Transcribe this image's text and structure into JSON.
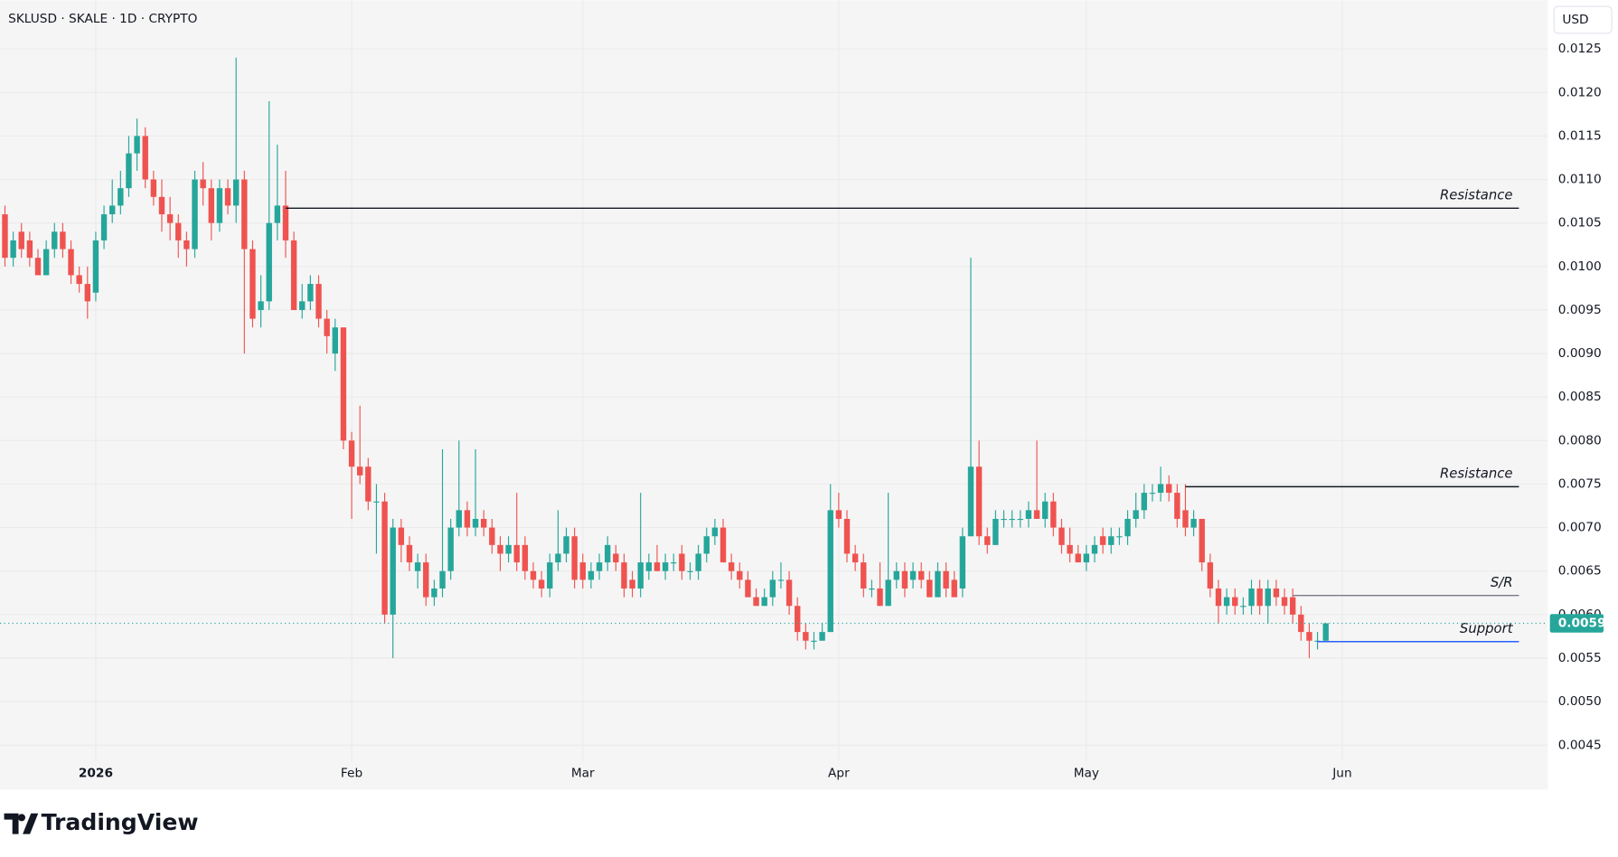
{
  "chart_data": {
    "type": "candlestick",
    "title": "SKLUSD · SKALE · 1D · CRYPTO",
    "currency": "USD",
    "brand": "TradingView",
    "up_color": "#26a69a",
    "down_color": "#ef5350",
    "xlim": [
      -0.6,
      186.9
    ],
    "xticks": [
      {
        "value": 11,
        "label": "2026"
      },
      {
        "value": 42,
        "label": "Feb"
      },
      {
        "value": 70,
        "label": "Mar"
      },
      {
        "value": 101,
        "label": "Apr"
      },
      {
        "value": 131,
        "label": "May"
      },
      {
        "value": 162,
        "label": "Jun"
      }
    ],
    "ylim": [
      0.00432,
      0.01306
    ],
    "yticks": [
      {
        "value": 0.0045,
        "label": "0.0045"
      },
      {
        "value": 0.005,
        "label": "0.0050"
      },
      0.0055,
      {
        "value": 0.006,
        "label": "0.0060"
      },
      0.0065,
      {
        "value": 0.007,
        "label": "0.0070"
      },
      0.0075,
      {
        "value": 0.008,
        "label": "0.0080"
      },
      0.0085,
      {
        "value": 0.009,
        "label": "0.0090"
      },
      0.0095,
      {
        "value": 0.01,
        "label": "0.0100"
      },
      0.0105,
      {
        "value": 0.011,
        "label": "0.0110"
      },
      0.0115,
      {
        "value": 0.012,
        "label": "0.0120"
      },
      0.0125
    ],
    "grid": true,
    "open": [
      0.0106,
      0.0101,
      0.0104,
      0.0103,
      0.0101,
      0.0099,
      0.0102,
      0.0104,
      0.0102,
      0.0099,
      0.0098,
      0.0097,
      0.0103,
      0.0106,
      0.0107,
      0.0109,
      0.0113,
      0.0115,
      0.011,
      0.0108,
      0.0106,
      0.0105,
      0.0103,
      0.0102,
      0.011,
      0.0109,
      0.0105,
      0.0109,
      0.0107,
      0.011,
      0.0102,
      0.0095,
      0.0096,
      0.0105,
      0.0107,
      0.0103,
      0.0095,
      0.0096,
      0.0098,
      0.0094,
      0.009,
      0.0093,
      0.008,
      0.0077,
      0.0077,
      0.0073,
      0.0073,
      0.006,
      0.007,
      0.0068,
      0.0065,
      0.0066,
      0.0062,
      0.0063,
      0.0065,
      0.007,
      0.0072,
      0.007,
      0.0071,
      0.007,
      0.0068,
      0.0067,
      0.0068,
      0.0068,
      0.0065,
      0.0064,
      0.0063,
      0.0066,
      0.0067,
      0.0069,
      0.0066,
      0.0064,
      0.0065,
      0.0066,
      0.0067,
      0.0066,
      0.0064,
      0.0063,
      0.0065,
      0.0066,
      0.0065,
      0.0066,
      0.0067,
      0.0065,
      0.0065,
      0.0067,
      0.0069,
      0.007,
      0.0066,
      0.0065,
      0.0064,
      0.0062,
      0.0061,
      0.0062,
      0.0064,
      0.0064,
      0.0061,
      0.0058,
      0.0057,
      0.0057,
      0.0058,
      0.0072,
      0.0071,
      0.0067,
      0.0066,
      0.0063,
      0.0063,
      0.0061,
      0.0064,
      0.0065,
      0.0064,
      0.0065,
      0.0064,
      0.0062,
      0.0065,
      0.0064,
      0.0063,
      0.0069,
      0.0077,
      0.0069,
      0.0068,
      0.0071,
      0.0071,
      0.0071,
      0.0071,
      0.0072,
      0.0071,
      0.0073,
      0.007,
      0.0068,
      0.0067,
      0.0066,
      0.0067,
      0.0069,
      0.0068,
      0.0069,
      0.0069,
      0.0071,
      0.0072,
      0.0074,
      0.0074,
      0.0075,
      0.0074,
      0.0072,
      0.007,
      0.0071,
      0.0066,
      0.0063,
      0.0061,
      0.0062,
      0.0061,
      0.0061,
      0.0063,
      0.0061,
      0.0063,
      0.0062,
      0.0062,
      0.006,
      0.0058,
      0.0057,
      0.0057
    ],
    "high": [
      0.0107,
      0.0104,
      0.0105,
      0.0104,
      0.0102,
      0.0103,
      0.0105,
      0.0105,
      0.0103,
      0.01,
      0.01,
      0.0104,
      0.0107,
      0.011,
      0.0111,
      0.0115,
      0.0117,
      0.0116,
      0.0111,
      0.011,
      0.0108,
      0.0106,
      0.0104,
      0.0111,
      0.0112,
      0.011,
      0.011,
      0.011,
      0.0124,
      0.0111,
      0.0103,
      0.0099,
      0.0119,
      0.0114,
      0.0111,
      0.0104,
      0.0098,
      0.0099,
      0.0099,
      0.0095,
      0.0094,
      0.0093,
      0.0081,
      0.0084,
      0.0078,
      0.0075,
      0.0074,
      0.0071,
      0.0071,
      0.0069,
      0.0067,
      0.0067,
      0.0064,
      0.0079,
      0.0071,
      0.008,
      0.0073,
      0.0079,
      0.0072,
      0.0071,
      0.0069,
      0.0069,
      0.0074,
      0.0069,
      0.0066,
      0.0065,
      0.0067,
      0.0072,
      0.007,
      0.007,
      0.0067,
      0.0066,
      0.0067,
      0.0069,
      0.0068,
      0.0067,
      0.0065,
      0.0074,
      0.0067,
      0.0068,
      0.0067,
      0.0067,
      0.0068,
      0.0066,
      0.0068,
      0.007,
      0.0071,
      0.0071,
      0.0067,
      0.0066,
      0.0065,
      0.0063,
      0.0063,
      0.0065,
      0.0066,
      0.0065,
      0.0062,
      0.0059,
      0.0058,
      0.0059,
      0.0075,
      0.0074,
      0.0072,
      0.0068,
      0.0067,
      0.0064,
      0.0066,
      0.0074,
      0.0066,
      0.0066,
      0.0066,
      0.0066,
      0.0065,
      0.0066,
      0.0066,
      0.0065,
      0.007,
      0.0101,
      0.008,
      0.007,
      0.0072,
      0.0072,
      0.0072,
      0.0072,
      0.0073,
      0.008,
      0.0074,
      0.0074,
      0.0071,
      0.007,
      0.0068,
      0.0068,
      0.0069,
      0.007,
      0.007,
      0.007,
      0.0072,
      0.0074,
      0.0075,
      0.0075,
      0.0077,
      0.0076,
      0.0075,
      0.0075,
      0.0072,
      0.0071,
      0.0067,
      0.0064,
      0.0063,
      0.0063,
      0.0062,
      0.0064,
      0.0064,
      0.0064,
      0.0064,
      0.0063,
      0.0063,
      0.0061,
      0.0059,
      0.0058,
      0.0059
    ],
    "low": [
      0.01,
      0.01,
      0.0101,
      0.01,
      0.0099,
      0.0099,
      0.0101,
      0.0101,
      0.0098,
      0.0097,
      0.0094,
      0.0096,
      0.0102,
      0.0105,
      0.0106,
      0.0108,
      0.0111,
      0.0109,
      0.0107,
      0.0104,
      0.0103,
      0.0101,
      0.01,
      0.0101,
      0.0107,
      0.0103,
      0.0104,
      0.0106,
      0.0105,
      0.009,
      0.0093,
      0.0093,
      0.0095,
      0.0103,
      0.0101,
      0.0095,
      0.0094,
      0.0095,
      0.0093,
      0.009,
      0.0088,
      0.0079,
      0.0071,
      0.0075,
      0.0072,
      0.0067,
      0.0059,
      0.0055,
      0.0066,
      0.0065,
      0.0063,
      0.0061,
      0.0061,
      0.0062,
      0.0064,
      0.0069,
      0.0069,
      0.0069,
      0.0069,
      0.0067,
      0.0065,
      0.0066,
      0.0065,
      0.0064,
      0.0063,
      0.0062,
      0.0062,
      0.0065,
      0.0066,
      0.0063,
      0.0063,
      0.0063,
      0.0064,
      0.0065,
      0.0065,
      0.0062,
      0.0062,
      0.0062,
      0.0064,
      0.0065,
      0.0064,
      0.0065,
      0.0064,
      0.0064,
      0.0064,
      0.0066,
      0.0068,
      0.0066,
      0.0064,
      0.0063,
      0.0062,
      0.0061,
      0.0061,
      0.0061,
      0.0063,
      0.006,
      0.0057,
      0.0056,
      0.0056,
      0.0057,
      0.0058,
      0.007,
      0.0066,
      0.0065,
      0.0062,
      0.0062,
      0.0061,
      0.0061,
      0.0063,
      0.0062,
      0.0063,
      0.0063,
      0.0062,
      0.0062,
      0.0062,
      0.0062,
      0.0062,
      0.0069,
      0.0068,
      0.0067,
      0.0068,
      0.007,
      0.007,
      0.007,
      0.007,
      0.0071,
      0.007,
      0.0069,
      0.0067,
      0.0066,
      0.0066,
      0.0065,
      0.0066,
      0.0067,
      0.0067,
      0.0068,
      0.0068,
      0.007,
      0.0071,
      0.0073,
      0.0073,
      0.0073,
      0.007,
      0.0069,
      0.0069,
      0.0065,
      0.0062,
      0.0059,
      0.006,
      0.006,
      0.006,
      0.006,
      0.006,
      0.0059,
      0.0061,
      0.006,
      0.0059,
      0.0057,
      0.0055,
      0.0056,
      0.0057
    ],
    "close": [
      0.0101,
      0.0103,
      0.0102,
      0.0101,
      0.0099,
      0.0102,
      0.0104,
      0.0102,
      0.0099,
      0.0098,
      0.0096,
      0.0103,
      0.0106,
      0.0107,
      0.0109,
      0.0113,
      0.0115,
      0.011,
      0.0108,
      0.0106,
      0.0105,
      0.0103,
      0.0102,
      0.011,
      0.0109,
      0.0105,
      0.0109,
      0.0107,
      0.011,
      0.0102,
      0.0094,
      0.0096,
      0.0105,
      0.0107,
      0.0103,
      0.0095,
      0.0096,
      0.0098,
      0.0094,
      0.0092,
      0.0093,
      0.008,
      0.0077,
      0.0076,
      0.0073,
      0.0073,
      0.006,
      0.007,
      0.0068,
      0.0066,
      0.0066,
      0.0062,
      0.0063,
      0.0065,
      0.007,
      0.0072,
      0.007,
      0.0071,
      0.007,
      0.0068,
      0.0067,
      0.0068,
      0.0066,
      0.0065,
      0.0064,
      0.0063,
      0.0066,
      0.0067,
      0.0069,
      0.0064,
      0.0064,
      0.0065,
      0.0066,
      0.0068,
      0.0066,
      0.0063,
      0.0063,
      0.0066,
      0.0066,
      0.0065,
      0.0066,
      0.0066,
      0.0065,
      0.0065,
      0.0067,
      0.0069,
      0.007,
      0.0066,
      0.0065,
      0.0064,
      0.0062,
      0.0061,
      0.0062,
      0.0064,
      0.0064,
      0.0061,
      0.0058,
      0.0057,
      0.0057,
      0.0058,
      0.0072,
      0.0071,
      0.0067,
      0.0066,
      0.0063,
      0.0063,
      0.0061,
      0.0064,
      0.0065,
      0.0063,
      0.0065,
      0.0064,
      0.0062,
      0.0065,
      0.0063,
      0.0062,
      0.0069,
      0.0077,
      0.0069,
      0.0068,
      0.0071,
      0.0071,
      0.0071,
      0.0071,
      0.0072,
      0.0071,
      0.0073,
      0.007,
      0.0068,
      0.0067,
      0.0066,
      0.0067,
      0.0068,
      0.0068,
      0.0069,
      0.0069,
      0.0071,
      0.0072,
      0.0074,
      0.0074,
      0.0075,
      0.0074,
      0.0071,
      0.007,
      0.0071,
      0.0066,
      0.0063,
      0.0061,
      0.0062,
      0.0061,
      0.0061,
      0.0063,
      0.0061,
      0.0063,
      0.0062,
      0.0061,
      0.006,
      0.0058,
      0.0057,
      0.0057,
      0.0059
    ],
    "last_price": {
      "value": 0.0059,
      "color": "#26a69a"
    },
    "levels": [
      {
        "label": "Resistance",
        "y": 0.01067,
        "x_start": 34,
        "x_end": 183.4,
        "color": "#131722"
      },
      {
        "label": "Resistance",
        "y": 0.00747,
        "x_start": 143,
        "x_end": 183.4,
        "color": "#131722"
      },
      {
        "label": "S/R",
        "y": 0.00622,
        "x_start": 156,
        "x_end": 183.4,
        "color": "#787b86"
      },
      {
        "label": "Support",
        "y": 0.00569,
        "x_start": 159,
        "x_end": 183.4,
        "color": "#2962ff"
      }
    ]
  }
}
